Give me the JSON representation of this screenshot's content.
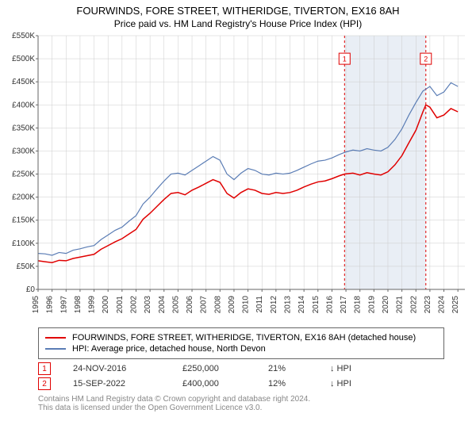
{
  "title_line1": "FOURWINDS, FORE STREET, WITHERIDGE, TIVERTON, EX16 8AH",
  "title_line2": "Price paid vs. HM Land Registry's House Price Index (HPI)",
  "chart": {
    "type": "line",
    "background_color": "#ffffff",
    "grid_color": "#cccccc",
    "axis_color": "#666666",
    "shaded_region": {
      "x_start": 2016.9,
      "x_end": 2022.71,
      "fill": "#e9eef5"
    },
    "y_axis": {
      "min": 0,
      "max": 550000,
      "tick_step": 50000,
      "tick_prefix": "£",
      "tick_format_k": true,
      "ticks": [
        0,
        50000,
        100000,
        150000,
        200000,
        250000,
        300000,
        350000,
        400000,
        450000,
        500000,
        550000
      ]
    },
    "x_axis": {
      "min": 1995,
      "max": 2025.5,
      "ticks": [
        1995,
        1996,
        1997,
        1998,
        1999,
        2000,
        2001,
        2002,
        2003,
        2004,
        2005,
        2006,
        2007,
        2008,
        2009,
        2010,
        2011,
        2012,
        2013,
        2014,
        2015,
        2016,
        2017,
        2018,
        2019,
        2020,
        2021,
        2022,
        2023,
        2024,
        2025
      ],
      "rotate_labels": true
    },
    "series": [
      {
        "id": "hpi",
        "label": "HPI: Average price, detached house, North Devon",
        "color": "#5b7db5",
        "line_width": 1.2,
        "points": [
          [
            1995.0,
            78000
          ],
          [
            1995.5,
            77000
          ],
          [
            1996.0,
            74000
          ],
          [
            1996.5,
            80000
          ],
          [
            1997.0,
            78000
          ],
          [
            1997.5,
            85000
          ],
          [
            1998.0,
            88000
          ],
          [
            1998.5,
            92000
          ],
          [
            1999.0,
            95000
          ],
          [
            1999.5,
            108000
          ],
          [
            2000.0,
            118000
          ],
          [
            2000.5,
            128000
          ],
          [
            2001.0,
            135000
          ],
          [
            2001.5,
            148000
          ],
          [
            2002.0,
            160000
          ],
          [
            2002.5,
            185000
          ],
          [
            2003.0,
            200000
          ],
          [
            2003.5,
            218000
          ],
          [
            2004.0,
            235000
          ],
          [
            2004.5,
            250000
          ],
          [
            2005.0,
            252000
          ],
          [
            2005.5,
            248000
          ],
          [
            2006.0,
            258000
          ],
          [
            2006.5,
            268000
          ],
          [
            2007.0,
            278000
          ],
          [
            2007.5,
            288000
          ],
          [
            2008.0,
            280000
          ],
          [
            2008.5,
            250000
          ],
          [
            2009.0,
            238000
          ],
          [
            2009.5,
            252000
          ],
          [
            2010.0,
            262000
          ],
          [
            2010.5,
            258000
          ],
          [
            2011.0,
            250000
          ],
          [
            2011.5,
            248000
          ],
          [
            2012.0,
            252000
          ],
          [
            2012.5,
            250000
          ],
          [
            2013.0,
            252000
          ],
          [
            2013.5,
            258000
          ],
          [
            2014.0,
            265000
          ],
          [
            2014.5,
            272000
          ],
          [
            2015.0,
            278000
          ],
          [
            2015.5,
            280000
          ],
          [
            2016.0,
            285000
          ],
          [
            2016.5,
            292000
          ],
          [
            2017.0,
            298000
          ],
          [
            2017.5,
            302000
          ],
          [
            2018.0,
            300000
          ],
          [
            2018.5,
            305000
          ],
          [
            2019.0,
            302000
          ],
          [
            2019.5,
            300000
          ],
          [
            2020.0,
            308000
          ],
          [
            2020.5,
            325000
          ],
          [
            2021.0,
            348000
          ],
          [
            2021.5,
            378000
          ],
          [
            2022.0,
            405000
          ],
          [
            2022.5,
            430000
          ],
          [
            2023.0,
            440000
          ],
          [
            2023.5,
            420000
          ],
          [
            2024.0,
            428000
          ],
          [
            2024.5,
            448000
          ],
          [
            2025.0,
            440000
          ]
        ]
      },
      {
        "id": "subject",
        "label": "FOURWINDS, FORE STREET, WITHERIDGE, TIVERTON, EX16 8AH (detached house)",
        "color": "#e00000",
        "line_width": 1.5,
        "points": [
          [
            1995.0,
            62000
          ],
          [
            1995.5,
            60000
          ],
          [
            1996.0,
            58000
          ],
          [
            1996.5,
            63000
          ],
          [
            1997.0,
            62000
          ],
          [
            1997.5,
            67000
          ],
          [
            1998.0,
            70000
          ],
          [
            1998.5,
            73000
          ],
          [
            1999.0,
            76000
          ],
          [
            1999.5,
            87000
          ],
          [
            2000.0,
            95000
          ],
          [
            2000.5,
            103000
          ],
          [
            2001.0,
            110000
          ],
          [
            2001.5,
            120000
          ],
          [
            2002.0,
            130000
          ],
          [
            2002.5,
            152000
          ],
          [
            2003.0,
            165000
          ],
          [
            2003.5,
            180000
          ],
          [
            2004.0,
            195000
          ],
          [
            2004.5,
            208000
          ],
          [
            2005.0,
            210000
          ],
          [
            2005.5,
            205000
          ],
          [
            2006.0,
            215000
          ],
          [
            2006.5,
            222000
          ],
          [
            2007.0,
            230000
          ],
          [
            2007.5,
            238000
          ],
          [
            2008.0,
            232000
          ],
          [
            2008.5,
            208000
          ],
          [
            2009.0,
            198000
          ],
          [
            2009.5,
            210000
          ],
          [
            2010.0,
            218000
          ],
          [
            2010.5,
            215000
          ],
          [
            2011.0,
            208000
          ],
          [
            2011.5,
            206000
          ],
          [
            2012.0,
            210000
          ],
          [
            2012.5,
            208000
          ],
          [
            2013.0,
            210000
          ],
          [
            2013.5,
            215000
          ],
          [
            2014.0,
            222000
          ],
          [
            2014.5,
            228000
          ],
          [
            2015.0,
            233000
          ],
          [
            2015.5,
            235000
          ],
          [
            2016.0,
            240000
          ],
          [
            2016.5,
            246000
          ],
          [
            2016.9,
            250000
          ],
          [
            2017.5,
            252000
          ],
          [
            2018.0,
            248000
          ],
          [
            2018.5,
            253000
          ],
          [
            2019.0,
            250000
          ],
          [
            2019.5,
            248000
          ],
          [
            2020.0,
            255000
          ],
          [
            2020.5,
            270000
          ],
          [
            2021.0,
            290000
          ],
          [
            2021.5,
            318000
          ],
          [
            2022.0,
            345000
          ],
          [
            2022.5,
            385000
          ],
          [
            2022.71,
            400000
          ],
          [
            2023.0,
            395000
          ],
          [
            2023.5,
            372000
          ],
          [
            2024.0,
            378000
          ],
          [
            2024.5,
            392000
          ],
          [
            2025.0,
            385000
          ]
        ]
      }
    ],
    "sale_markers": [
      {
        "n": "1",
        "x": 2016.9,
        "y_box": 500000,
        "line_color": "#e00000"
      },
      {
        "n": "2",
        "x": 2022.71,
        "y_box": 500000,
        "line_color": "#e00000"
      }
    ]
  },
  "legend": {
    "border_color": "#666666",
    "items": [
      {
        "color": "#e00000",
        "label": "FOURWINDS, FORE STREET, WITHERIDGE, TIVERTON, EX16 8AH (detached house)"
      },
      {
        "color": "#5b7db5",
        "label": "HPI: Average price, detached house, North Devon"
      }
    ]
  },
  "sales": [
    {
      "n": "1",
      "date": "24-NOV-2016",
      "price": "£250,000",
      "pct": "21%",
      "arrow": "↓",
      "suffix": "HPI"
    },
    {
      "n": "2",
      "date": "15-SEP-2022",
      "price": "£400,000",
      "pct": "12%",
      "arrow": "↓",
      "suffix": "HPI"
    }
  ],
  "footer_line1": "Contains HM Land Registry data © Crown copyright and database right 2024.",
  "footer_line2": "This data is licensed under the Open Government Licence v3.0."
}
